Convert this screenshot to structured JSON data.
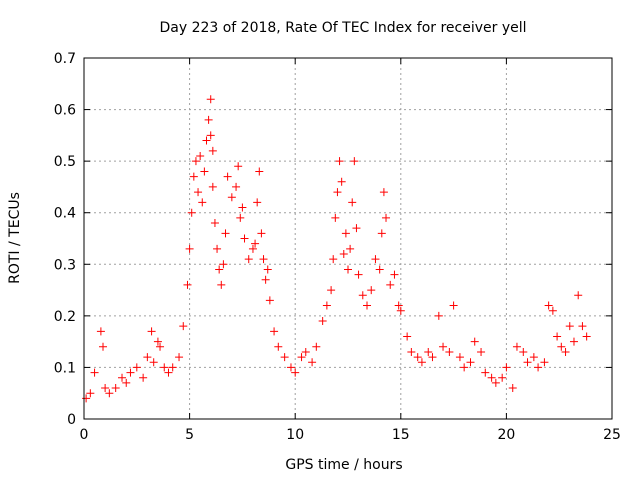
{
  "chart_data": {
    "type": "scatter",
    "title": "Day 223 of 2018, Rate Of TEC Index for receiver yell",
    "xlabel": "GPS time / hours",
    "ylabel": "ROTI / TECUs",
    "xlim": [
      0,
      25
    ],
    "ylim": [
      0,
      0.7
    ],
    "xticks": [
      0,
      5,
      10,
      15,
      20,
      25
    ],
    "yticks": [
      0,
      0.1,
      0.2,
      0.3,
      0.4,
      0.5,
      0.6,
      0.7
    ],
    "grid": true,
    "marker": "+",
    "color": "#ff0000",
    "series": [
      {
        "x": [
          0.1,
          0.3,
          0.5,
          0.8,
          0.9,
          1.0,
          1.2,
          1.5,
          1.8,
          2.0,
          2.2,
          2.5,
          2.8,
          3.0,
          3.2,
          3.3,
          3.5,
          3.6,
          3.8,
          4.0,
          4.2,
          4.5,
          4.7,
          4.9,
          5.0,
          5.1,
          5.2,
          5.3,
          5.4,
          5.5,
          5.6,
          5.7,
          5.8,
          5.9,
          6.0,
          6.0,
          6.1,
          6.1,
          6.2,
          6.3,
          6.4,
          6.5,
          6.6,
          6.7,
          6.8,
          7.0,
          7.2,
          7.3,
          7.4,
          7.5,
          7.6,
          7.8,
          8.0,
          8.1,
          8.2,
          8.3,
          8.4,
          8.5,
          8.6,
          8.7,
          8.8,
          9.0,
          9.2,
          9.5,
          9.8,
          10.0,
          10.3,
          10.5,
          10.8,
          11.0,
          11.3,
          11.5,
          11.7,
          11.8,
          11.9,
          12.0,
          12.1,
          12.2,
          12.3,
          12.4,
          12.5,
          12.6,
          12.7,
          12.8,
          12.9,
          13.0,
          13.2,
          13.4,
          13.6,
          13.8,
          14.0,
          14.1,
          14.2,
          14.3,
          14.5,
          14.7,
          14.9,
          15.0,
          15.3,
          15.5,
          15.8,
          16.0,
          16.3,
          16.5,
          16.8,
          17.0,
          17.3,
          17.5,
          17.8,
          18.0,
          18.3,
          18.5,
          18.8,
          19.0,
          19.3,
          19.5,
          19.8,
          20.0,
          20.3,
          20.5,
          20.8,
          21.0,
          21.3,
          21.5,
          21.8,
          22.0,
          22.2,
          22.4,
          22.6,
          22.8,
          23.0,
          23.2,
          23.4,
          23.6,
          23.8
        ],
        "y": [
          0.04,
          0.05,
          0.09,
          0.17,
          0.14,
          0.06,
          0.05,
          0.06,
          0.08,
          0.07,
          0.09,
          0.1,
          0.08,
          0.12,
          0.17,
          0.11,
          0.15,
          0.14,
          0.1,
          0.09,
          0.1,
          0.12,
          0.18,
          0.26,
          0.33,
          0.4,
          0.47,
          0.5,
          0.44,
          0.51,
          0.42,
          0.48,
          0.54,
          0.58,
          0.62,
          0.55,
          0.52,
          0.45,
          0.38,
          0.33,
          0.29,
          0.26,
          0.3,
          0.36,
          0.47,
          0.43,
          0.45,
          0.49,
          0.39,
          0.41,
          0.35,
          0.31,
          0.33,
          0.34,
          0.42,
          0.48,
          0.36,
          0.31,
          0.27,
          0.29,
          0.23,
          0.17,
          0.14,
          0.12,
          0.1,
          0.09,
          0.12,
          0.13,
          0.11,
          0.14,
          0.19,
          0.22,
          0.25,
          0.31,
          0.39,
          0.44,
          0.5,
          0.46,
          0.32,
          0.36,
          0.29,
          0.33,
          0.42,
          0.5,
          0.37,
          0.28,
          0.24,
          0.22,
          0.25,
          0.31,
          0.29,
          0.36,
          0.44,
          0.39,
          0.26,
          0.28,
          0.22,
          0.21,
          0.16,
          0.13,
          0.12,
          0.11,
          0.13,
          0.12,
          0.2,
          0.14,
          0.13,
          0.22,
          0.12,
          0.1,
          0.11,
          0.15,
          0.13,
          0.09,
          0.08,
          0.07,
          0.08,
          0.1,
          0.06,
          0.14,
          0.13,
          0.11,
          0.12,
          0.1,
          0.11,
          0.22,
          0.21,
          0.16,
          0.14,
          0.13,
          0.18,
          0.15,
          0.24,
          0.18,
          0.16
        ]
      }
    ]
  }
}
